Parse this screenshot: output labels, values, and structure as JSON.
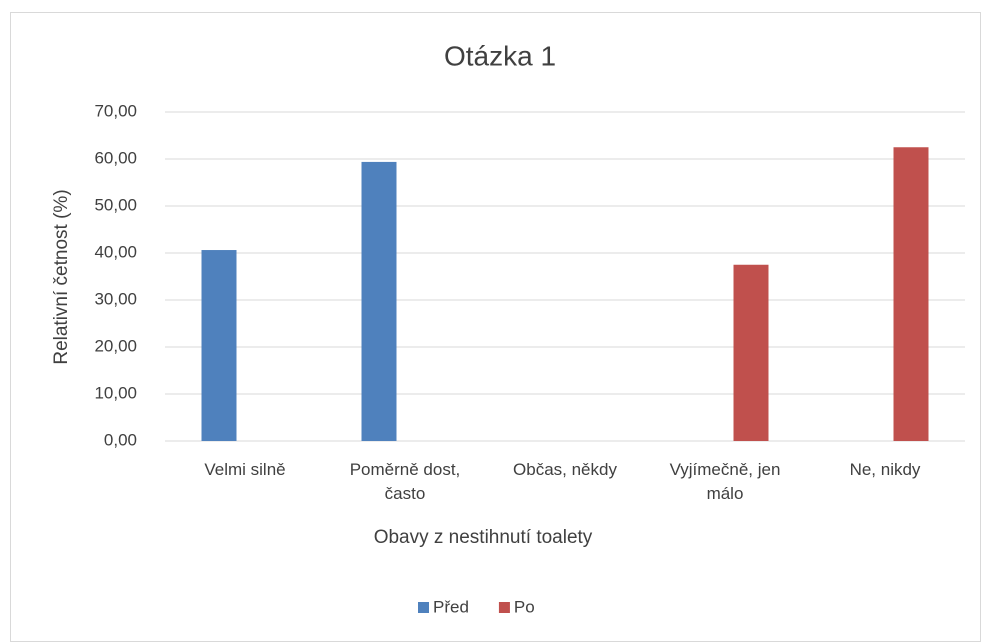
{
  "chart_data": {
    "type": "bar",
    "title": "Otázka 1",
    "x_label": "Obavy z nestihnutí toalety",
    "y_label": "Relativní četnost (%)",
    "categories": [
      "Velmi silně",
      "Poměrně dost, často",
      "Občas, někdy",
      "Vyjímečně, jen málo",
      "Ne, nikdy"
    ],
    "series": [
      {
        "name": "Před",
        "color": "#4f81bd",
        "values": [
          40.63,
          59.38,
          0,
          0,
          0
        ]
      },
      {
        "name": "Po",
        "color": "#c0504d",
        "values": [
          0,
          0,
          0,
          37.5,
          62.5
        ]
      }
    ],
    "ylim": [
      0,
      70
    ],
    "yticks": [
      {
        "value": 0,
        "label": "0,00"
      },
      {
        "value": 10,
        "label": "10,00"
      },
      {
        "value": 20,
        "label": "20,00"
      },
      {
        "value": 30,
        "label": "30,00"
      },
      {
        "value": 40,
        "label": "40,00"
      },
      {
        "value": 50,
        "label": "50,00"
      },
      {
        "value": 60,
        "label": "60,00"
      },
      {
        "value": 70,
        "label": "70,00"
      }
    ],
    "grid": true,
    "legend": "bottom"
  }
}
